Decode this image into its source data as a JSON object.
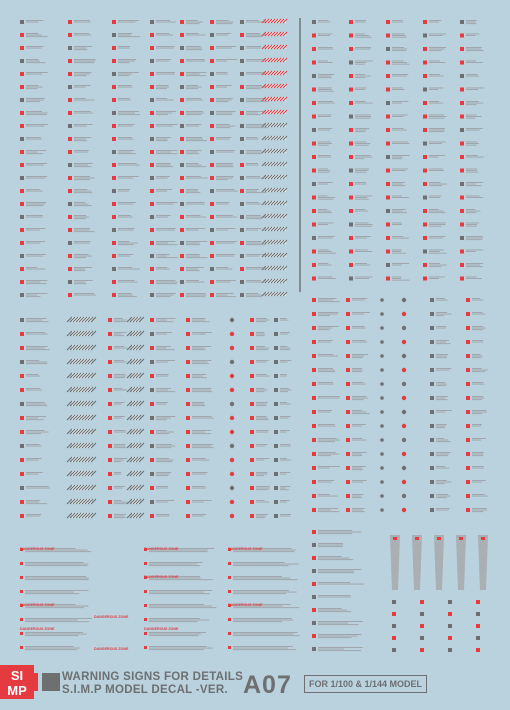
{
  "sheet": {
    "background": "#b9d2de",
    "accent_red": "#e53a3f",
    "accent_gray": "#6d6f71",
    "line_gray": "#9ea2a6"
  },
  "warning_label": "DANGEROUS ZONE",
  "footer": {
    "title_line1": "WARNING SIGNS FOR DETAILS",
    "title_line2": "S.I.M.P MODEL DECAL -VER.",
    "code": "A07",
    "scale": "FOR 1/100 & 1/144 MODEL",
    "logo_icon": "hex-cube-logo-icon",
    "brand_letters": [
      "SI",
      "MP"
    ]
  }
}
